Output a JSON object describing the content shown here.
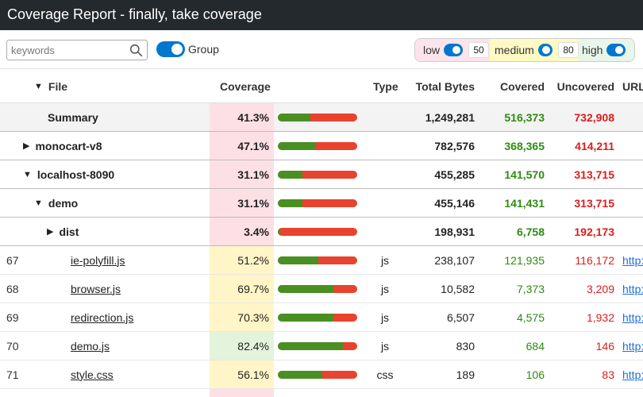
{
  "title": "Coverage Report - finally, take coverage",
  "search": {
    "placeholder": "keywords",
    "value": ""
  },
  "group": {
    "label": "Group",
    "on": true
  },
  "levels": {
    "low": "low",
    "medium": "medium",
    "high": "high",
    "low_threshold": "50",
    "high_threshold": "80"
  },
  "columns": {
    "file": "File",
    "coverage": "Coverage",
    "type": "Type",
    "total": "Total Bytes",
    "covered": "Covered",
    "uncovered": "Uncovered",
    "url": "URL"
  },
  "rows": [
    {
      "idx": "",
      "name": "Summary",
      "pct": "41.3%",
      "ratio": 0.413,
      "level": "low",
      "type": "",
      "total": "1,249,281",
      "covered": "516,373",
      "uncovered": "732,908",
      "url": "",
      "kind": "summary",
      "indent": 60,
      "toggle": ""
    },
    {
      "idx": "",
      "name": "monocart-v8",
      "pct": "47.1%",
      "ratio": 0.471,
      "level": "low",
      "type": "",
      "total": "782,576",
      "covered": "368,365",
      "uncovered": "414,211",
      "url": "",
      "kind": "group",
      "indent": 44,
      "toggle": "▶"
    },
    {
      "idx": "",
      "name": "localhost-8090",
      "pct": "31.1%",
      "ratio": 0.311,
      "level": "low",
      "type": "",
      "total": "455,285",
      "covered": "141,570",
      "uncovered": "313,715",
      "url": "",
      "kind": "group",
      "indent": 44,
      "toggle": "▼"
    },
    {
      "idx": "",
      "name": "demo",
      "pct": "31.1%",
      "ratio": 0.311,
      "level": "low",
      "type": "",
      "total": "455,146",
      "covered": "141,431",
      "uncovered": "313,715",
      "url": "",
      "kind": "group",
      "indent": 58,
      "toggle": "▼"
    },
    {
      "idx": "",
      "name": "dist",
      "pct": "3.4%",
      "ratio": 0.034,
      "level": "low",
      "type": "",
      "total": "198,931",
      "covered": "6,758",
      "uncovered": "192,173",
      "url": "",
      "kind": "group",
      "indent": 74,
      "toggle": "▶"
    },
    {
      "idx": "67",
      "name": "ie-polyfill.js",
      "pct": "51.2%",
      "ratio": 0.512,
      "level": "med",
      "type": "js",
      "total": "238,107",
      "covered": "121,935",
      "uncovered": "116,172",
      "url": "http://",
      "kind": "file",
      "indent": 89,
      "toggle": ""
    },
    {
      "idx": "68",
      "name": "browser.js",
      "pct": "69.7%",
      "ratio": 0.697,
      "level": "med",
      "type": "js",
      "total": "10,582",
      "covered": "7,373",
      "uncovered": "3,209",
      "url": "http://",
      "kind": "file",
      "indent": 89,
      "toggle": ""
    },
    {
      "idx": "69",
      "name": "redirection.js",
      "pct": "70.3%",
      "ratio": 0.703,
      "level": "med",
      "type": "js",
      "total": "6,507",
      "covered": "4,575",
      "uncovered": "1,932",
      "url": "http://",
      "kind": "file",
      "indent": 89,
      "toggle": ""
    },
    {
      "idx": "70",
      "name": "demo.js",
      "pct": "82.4%",
      "ratio": 0.824,
      "level": "high",
      "type": "js",
      "total": "830",
      "covered": "684",
      "uncovered": "146",
      "url": "http://",
      "kind": "file",
      "indent": 89,
      "toggle": ""
    },
    {
      "idx": "71",
      "name": "style.css",
      "pct": "56.1%",
      "ratio": 0.561,
      "level": "med",
      "type": "css",
      "total": "189",
      "covered": "106",
      "uncovered": "83",
      "url": "http://",
      "kind": "file",
      "indent": 89,
      "toggle": ""
    }
  ]
}
